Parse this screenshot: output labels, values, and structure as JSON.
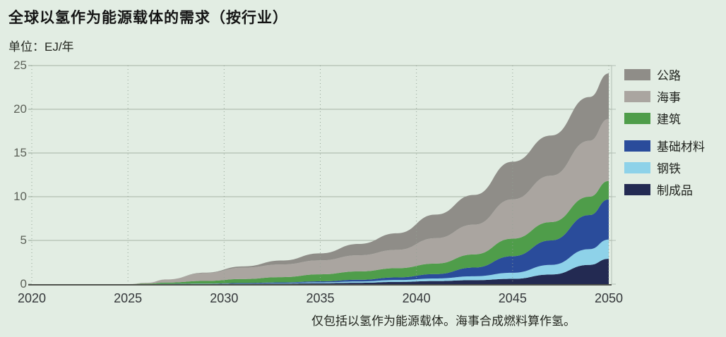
{
  "header": {
    "title": "全球以氢作为能源载体的需求（按行业）",
    "unit_label": "单位：EJ/年",
    "footnote": "仅包括以氢作为能源载体。海事合成燃料算作氢。"
  },
  "legend": {
    "items": [
      {
        "label": "公路",
        "color": "#8f8d88"
      },
      {
        "label": "海事",
        "color": "#aaa5a0"
      },
      {
        "label": "建筑",
        "color": "#4f9d4a"
      },
      {
        "label": "基础材料",
        "color": "#2a4c9b"
      },
      {
        "label": "钢铁",
        "color": "#8ed2e9"
      },
      {
        "label": "制成品",
        "color": "#232a52"
      }
    ]
  },
  "chart_data": {
    "type": "area",
    "stacked": true,
    "title": "全球以氢作为能源载体的需求（按行业）",
    "xlabel": "",
    "ylabel": "EJ/年",
    "xlim": [
      2020,
      2050
    ],
    "ylim": [
      0,
      25
    ],
    "x_ticks": [
      2020,
      2025,
      2030,
      2035,
      2040,
      2045,
      2050
    ],
    "y_ticks": [
      0,
      5,
      10,
      15,
      20,
      25
    ],
    "grid": "horizontal-solid, vertical-dotted",
    "legend_position": "right",
    "stack_order": "bottom-to-top",
    "x": [
      2020,
      2025,
      2026,
      2027,
      2029,
      2031,
      2033,
      2035,
      2037,
      2039,
      2041,
      2043,
      2045,
      2047,
      2049,
      2050
    ],
    "series": [
      {
        "name": "制成品",
        "color": "#232a52",
        "values": [
          0,
          0,
          0,
          0.01,
          0.02,
          0.04,
          0.06,
          0.1,
          0.15,
          0.25,
          0.35,
          0.45,
          0.6,
          1.1,
          2.2,
          2.9
        ]
      },
      {
        "name": "钢铁",
        "color": "#8ed2e9",
        "values": [
          0,
          0,
          0,
          0.01,
          0.02,
          0.04,
          0.06,
          0.1,
          0.15,
          0.22,
          0.3,
          0.45,
          0.7,
          1.1,
          1.8,
          2.2
        ]
      },
      {
        "name": "基础材料",
        "color": "#2a4c9b",
        "values": [
          0,
          0,
          0,
          0.01,
          0.02,
          0.05,
          0.08,
          0.12,
          0.2,
          0.3,
          0.5,
          1.0,
          1.9,
          2.8,
          3.9,
          4.6
        ]
      },
      {
        "name": "建筑",
        "color": "#4f9d4a",
        "values": [
          0,
          0,
          0.05,
          0.15,
          0.3,
          0.45,
          0.6,
          0.8,
          0.95,
          1.05,
          1.2,
          1.5,
          2.0,
          2.1,
          2.1,
          2.1
        ]
      },
      {
        "name": "海事",
        "color": "#aaa5a0",
        "values": [
          0,
          0,
          0.1,
          0.35,
          0.9,
          1.3,
          1.45,
          1.6,
          1.85,
          2.1,
          2.9,
          3.4,
          4.5,
          5.3,
          6.4,
          7.1
        ]
      },
      {
        "name": "公路",
        "color": "#8f8d88",
        "values": [
          0,
          0,
          0,
          0,
          0.05,
          0.15,
          0.45,
          0.8,
          1.3,
          1.9,
          2.7,
          3.4,
          4.3,
          4.6,
          5.0,
          5.2
        ]
      }
    ]
  },
  "colors": {
    "background": "#e2ede3",
    "grid": "#a6b2a6",
    "grid_dotted": "#93a395",
    "axis_bottom": "#4f524c",
    "axis_right": "#b3bfb4",
    "y_tick_text": "#5c6158",
    "x_tick_text": "#34373a"
  }
}
